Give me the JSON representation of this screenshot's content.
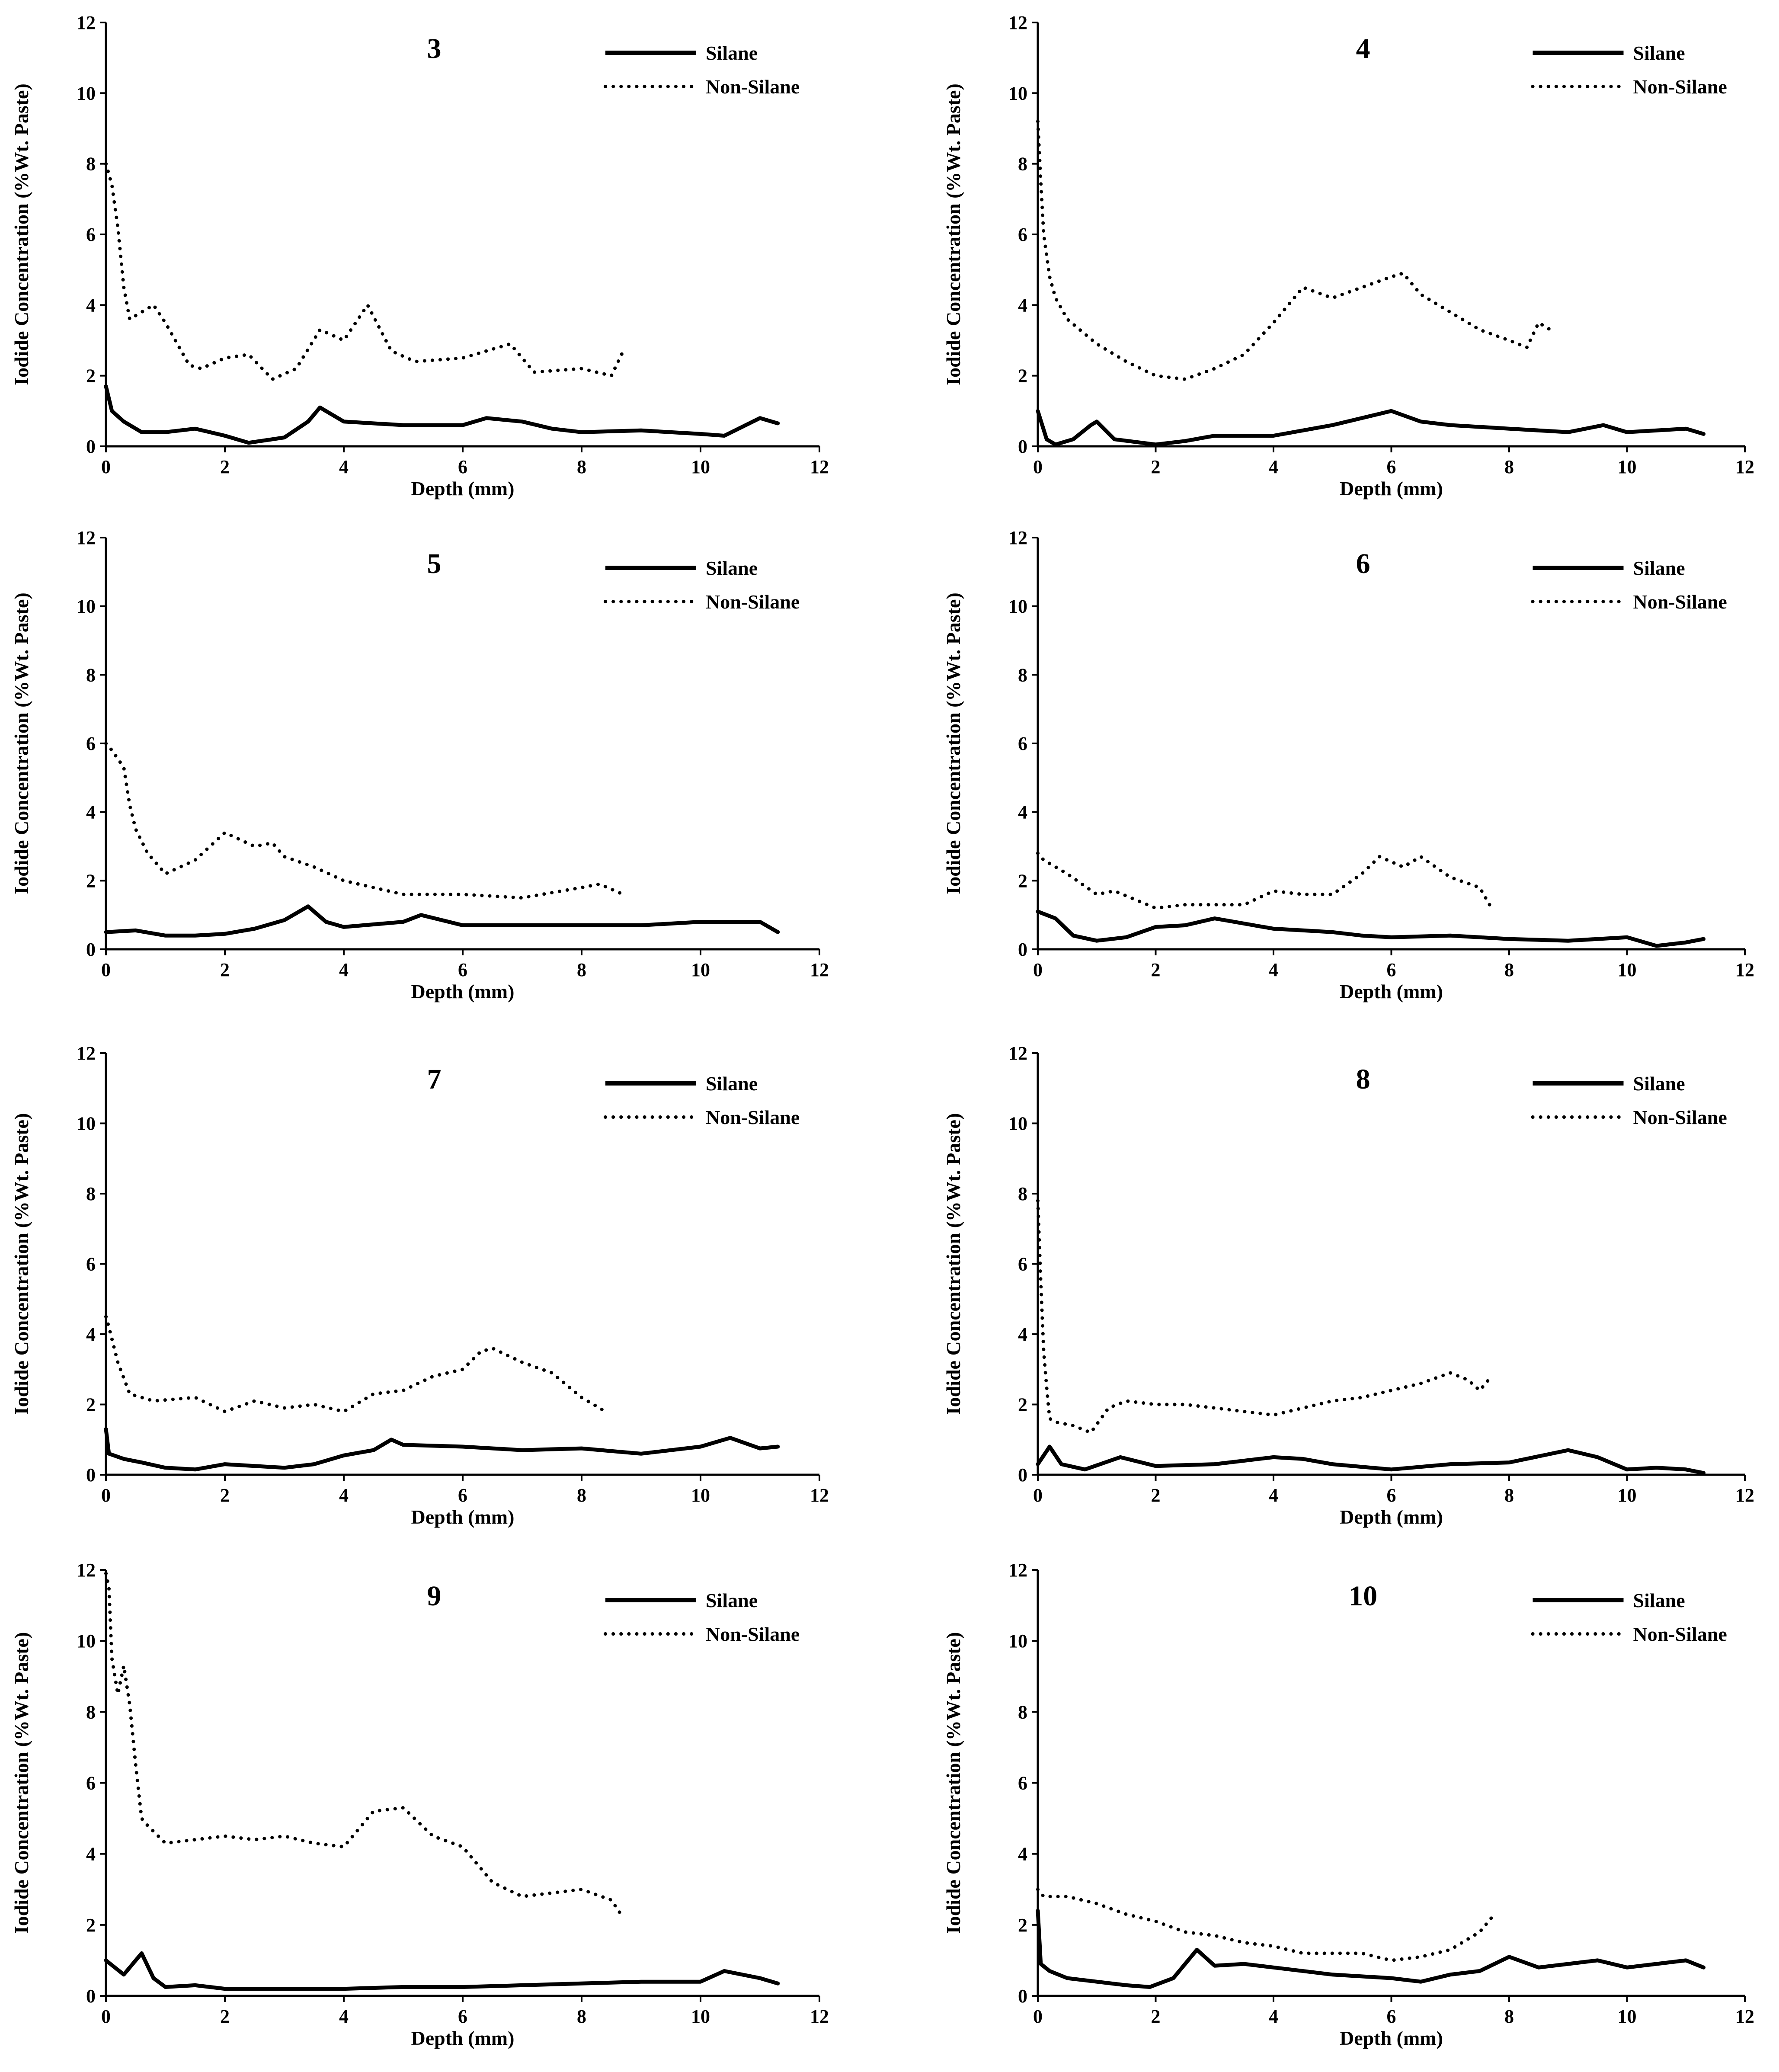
{
  "figure": {
    "series_names": [
      "Silane",
      "Non-Silane"
    ],
    "colors": {
      "axis": "#000000",
      "line": "#000000",
      "background": "#ffffff"
    }
  },
  "chart_data": [
    {
      "type": "line",
      "title": "3",
      "xlabel": "Depth (mm)",
      "ylabel": "Iodide Concentration (%Wt. Paste)",
      "xlim": [
        0,
        12
      ],
      "ylim": [
        0,
        12
      ],
      "xticks": [
        0,
        2,
        4,
        6,
        8,
        10,
        12
      ],
      "yticks": [
        0,
        2,
        4,
        6,
        8,
        10,
        12
      ],
      "legend": "top-right",
      "series": [
        {
          "name": "Silane",
          "style": "solid",
          "x": [
            0,
            0.1,
            0.3,
            0.6,
            1,
            1.5,
            2,
            2.4,
            3,
            3.4,
            3.6,
            4,
            5,
            6,
            6.4,
            7,
            7.5,
            8,
            9,
            10,
            10.4,
            11,
            11.3
          ],
          "y": [
            1.7,
            1.0,
            0.7,
            0.4,
            0.4,
            0.5,
            0.3,
            0.1,
            0.25,
            0.7,
            1.1,
            0.7,
            0.6,
            0.6,
            0.8,
            0.7,
            0.5,
            0.4,
            0.45,
            0.35,
            0.3,
            0.8,
            0.65
          ]
        },
        {
          "name": "Non-Silane",
          "style": "dotted",
          "x": [
            0,
            0.1,
            0.2,
            0.3,
            0.4,
            0.5,
            0.8,
            1,
            1.4,
            1.6,
            2,
            2.4,
            2.8,
            3.2,
            3.6,
            4,
            4.4,
            4.8,
            5.2,
            6,
            6.8,
            7.2,
            8,
            8.5,
            8.7
          ],
          "y": [
            8.0,
            7.4,
            6.2,
            4.5,
            3.6,
            3.7,
            4.0,
            3.5,
            2.3,
            2.2,
            2.5,
            2.6,
            1.9,
            2.2,
            3.3,
            3.0,
            4.0,
            2.7,
            2.4,
            2.5,
            2.9,
            2.1,
            2.2,
            2.0,
            2.7
          ]
        }
      ]
    },
    {
      "type": "line",
      "title": "4",
      "xlabel": "Depth (mm)",
      "ylabel": "Iodide Concentration (%Wt. Paste)",
      "xlim": [
        0,
        12
      ],
      "ylim": [
        0,
        12
      ],
      "xticks": [
        0,
        2,
        4,
        6,
        8,
        10,
        12
      ],
      "yticks": [
        0,
        2,
        4,
        6,
        8,
        10,
        12
      ],
      "legend": "top-right",
      "series": [
        {
          "name": "Silane",
          "style": "solid",
          "x": [
            0,
            0.15,
            0.3,
            0.6,
            0.9,
            1.0,
            1.3,
            2,
            2.5,
            3,
            4,
            5,
            6,
            6.5,
            7,
            8,
            9,
            9.6,
            10,
            11,
            11.3
          ],
          "y": [
            1.0,
            0.2,
            0.05,
            0.2,
            0.6,
            0.7,
            0.2,
            0.05,
            0.15,
            0.3,
            0.3,
            0.6,
            1.0,
            0.7,
            0.6,
            0.5,
            0.4,
            0.6,
            0.4,
            0.5,
            0.35
          ]
        },
        {
          "name": "Non-Silane",
          "style": "dotted",
          "x": [
            0,
            0.05,
            0.1,
            0.2,
            0.3,
            0.5,
            1,
            1.5,
            2,
            2.5,
            3,
            3.5,
            4,
            4.5,
            5,
            5.5,
            6,
            6.2,
            6.5,
            7,
            7.5,
            8,
            8.3,
            8.5,
            8.7
          ],
          "y": [
            9.2,
            7.5,
            6.0,
            4.8,
            4.2,
            3.6,
            2.9,
            2.4,
            2.0,
            1.9,
            2.2,
            2.6,
            3.5,
            4.5,
            4.2,
            4.5,
            4.8,
            4.9,
            4.3,
            3.8,
            3.3,
            3.0,
            2.8,
            3.5,
            3.3
          ]
        }
      ]
    },
    {
      "type": "line",
      "title": "5",
      "xlabel": "Depth (mm)",
      "ylabel": "Iodide Concentration (%Wt. Paste)",
      "xlim": [
        0,
        12
      ],
      "ylim": [
        0,
        12
      ],
      "xticks": [
        0,
        2,
        4,
        6,
        8,
        10,
        12
      ],
      "yticks": [
        0,
        2,
        4,
        6,
        8,
        10,
        12
      ],
      "legend": "top-right",
      "series": [
        {
          "name": "Silane",
          "style": "solid",
          "x": [
            0,
            0.5,
            1,
            1.5,
            2,
            2.5,
            3,
            3.4,
            3.7,
            4,
            5,
            5.3,
            6,
            7,
            8,
            9,
            10,
            11,
            11.3
          ],
          "y": [
            0.5,
            0.55,
            0.4,
            0.4,
            0.45,
            0.6,
            0.85,
            1.25,
            0.8,
            0.65,
            0.8,
            1.0,
            0.7,
            0.7,
            0.7,
            0.7,
            0.8,
            0.8,
            0.5
          ]
        },
        {
          "name": "Non-Silane",
          "style": "dotted",
          "x": [
            0,
            0.1,
            0.3,
            0.4,
            0.5,
            0.7,
            1,
            1.5,
            2,
            2.5,
            2.8,
            3,
            3.5,
            4,
            5,
            6,
            7,
            8,
            8.3,
            8.7
          ],
          "y": [
            6.0,
            5.8,
            5.3,
            4.2,
            3.5,
            2.8,
            2.2,
            2.6,
            3.4,
            3.0,
            3.1,
            2.7,
            2.4,
            2.0,
            1.6,
            1.6,
            1.5,
            1.8,
            1.9,
            1.6
          ]
        }
      ]
    },
    {
      "type": "line",
      "title": "6",
      "xlabel": "Depth (mm)",
      "ylabel": "Iodide Concentration (%Wt. Paste)",
      "xlim": [
        0,
        12
      ],
      "ylim": [
        0,
        12
      ],
      "xticks": [
        0,
        2,
        4,
        6,
        8,
        10,
        12
      ],
      "yticks": [
        0,
        2,
        4,
        6,
        8,
        10,
        12
      ],
      "legend": "top-right",
      "series": [
        {
          "name": "Silane",
          "style": "solid",
          "x": [
            0,
            0.3,
            0.6,
            1,
            1.5,
            2,
            2.5,
            3,
            3.5,
            4,
            5,
            5.5,
            6,
            7,
            8,
            9,
            10,
            10.5,
            11,
            11.3
          ],
          "y": [
            1.1,
            0.9,
            0.4,
            0.25,
            0.35,
            0.65,
            0.7,
            0.9,
            0.75,
            0.6,
            0.5,
            0.4,
            0.35,
            0.4,
            0.3,
            0.25,
            0.35,
            0.1,
            0.2,
            0.3
          ]
        },
        {
          "name": "Non-Silane",
          "style": "dotted",
          "x": [
            0,
            0.1,
            0.5,
            1,
            1.3,
            2,
            2.5,
            3,
            3.5,
            4,
            4.5,
            5,
            5.5,
            5.8,
            6.2,
            6.5,
            7,
            7.5,
            7.7
          ],
          "y": [
            2.8,
            2.6,
            2.2,
            1.6,
            1.7,
            1.2,
            1.3,
            1.3,
            1.3,
            1.7,
            1.6,
            1.6,
            2.2,
            2.7,
            2.4,
            2.7,
            2.1,
            1.8,
            1.2
          ]
        }
      ]
    },
    {
      "type": "line",
      "title": "7",
      "xlabel": "Depth (mm)",
      "ylabel": "Iodide Concentration (%Wt. Paste)",
      "xlim": [
        0,
        12
      ],
      "ylim": [
        0,
        12
      ],
      "xticks": [
        0,
        2,
        4,
        6,
        8,
        10,
        12
      ],
      "yticks": [
        0,
        2,
        4,
        6,
        8,
        10,
        12
      ],
      "legend": "top-right",
      "series": [
        {
          "name": "Silane",
          "style": "solid",
          "x": [
            0,
            0.05,
            0.3,
            0.6,
            1,
            1.5,
            2,
            2.5,
            3,
            3.5,
            4,
            4.5,
            4.8,
            5,
            6,
            7,
            8,
            9,
            10,
            10.5,
            11,
            11.3
          ],
          "y": [
            1.3,
            0.6,
            0.45,
            0.35,
            0.2,
            0.15,
            0.3,
            0.25,
            0.2,
            0.3,
            0.55,
            0.7,
            1.0,
            0.85,
            0.8,
            0.7,
            0.75,
            0.6,
            0.8,
            1.05,
            0.75,
            0.8
          ]
        },
        {
          "name": "Non-Silane",
          "style": "dotted",
          "x": [
            0,
            0.05,
            0.2,
            0.4,
            0.8,
            1.5,
            2,
            2.5,
            3,
            3.5,
            4,
            4.5,
            5,
            5.5,
            6,
            6.3,
            6.5,
            7,
            7.5,
            8,
            8.4
          ],
          "y": [
            4.5,
            4.2,
            3.2,
            2.3,
            2.1,
            2.2,
            1.8,
            2.1,
            1.9,
            2.0,
            1.8,
            2.3,
            2.4,
            2.8,
            3.0,
            3.5,
            3.6,
            3.2,
            2.9,
            2.2,
            1.8
          ]
        }
      ]
    },
    {
      "type": "line",
      "title": "8",
      "xlabel": "Depth (mm)",
      "ylabel": "Iodide Concentration (%Wt. Paste)",
      "xlim": [
        0,
        12
      ],
      "ylim": [
        0,
        12
      ],
      "xticks": [
        0,
        2,
        4,
        6,
        8,
        10,
        12
      ],
      "yticks": [
        0,
        2,
        4,
        6,
        8,
        10,
        12
      ],
      "legend": "top-right",
      "series": [
        {
          "name": "Silane",
          "style": "solid",
          "x": [
            0,
            0.2,
            0.4,
            0.8,
            1.4,
            2,
            3,
            4,
            4.5,
            5,
            6,
            7,
            8,
            9,
            9.5,
            10,
            10.5,
            11,
            11.3
          ],
          "y": [
            0.3,
            0.8,
            0.3,
            0.15,
            0.5,
            0.25,
            0.3,
            0.5,
            0.45,
            0.3,
            0.15,
            0.3,
            0.35,
            0.7,
            0.5,
            0.15,
            0.2,
            0.15,
            0.05
          ]
        },
        {
          "name": "Non-Silane",
          "style": "dotted",
          "x": [
            0,
            0.05,
            0.1,
            0.15,
            0.2,
            0.3,
            0.6,
            0.9,
            1.2,
            1.5,
            2,
            2.5,
            3,
            3.5,
            4,
            4.5,
            5,
            5.5,
            6,
            6.5,
            7,
            7.3,
            7.5,
            7.7
          ],
          "y": [
            7.8,
            5.5,
            3.5,
            2.5,
            1.6,
            1.5,
            1.4,
            1.2,
            1.9,
            2.1,
            2.0,
            2.0,
            1.9,
            1.8,
            1.7,
            1.9,
            2.1,
            2.2,
            2.4,
            2.6,
            2.9,
            2.7,
            2.4,
            2.8
          ]
        }
      ]
    },
    {
      "type": "line",
      "title": "9",
      "xlabel": "Depth (mm)",
      "ylabel": "Iodide Concentration (%Wt. Paste)",
      "xlim": [
        0,
        12
      ],
      "ylim": [
        0,
        12
      ],
      "xticks": [
        0,
        2,
        4,
        6,
        8,
        10,
        12
      ],
      "yticks": [
        0,
        2,
        4,
        6,
        8,
        10,
        12
      ],
      "legend": "top-right",
      "series": [
        {
          "name": "Silane",
          "style": "solid",
          "x": [
            0,
            0.3,
            0.5,
            0.6,
            0.8,
            1,
            1.5,
            2,
            3,
            4,
            5,
            6,
            7,
            8,
            9,
            10,
            10.4,
            11,
            11.3
          ],
          "y": [
            1.0,
            0.6,
            1.0,
            1.2,
            0.5,
            0.25,
            0.3,
            0.2,
            0.2,
            0.2,
            0.25,
            0.25,
            0.3,
            0.35,
            0.4,
            0.4,
            0.7,
            0.5,
            0.35
          ]
        },
        {
          "name": "Non-Silane",
          "style": "dotted",
          "x": [
            0,
            0.05,
            0.1,
            0.2,
            0.3,
            0.4,
            0.5,
            0.6,
            0.7,
            1,
            1.5,
            2,
            2.5,
            3,
            3.5,
            4,
            4.5,
            5,
            5.5,
            6,
            6.5,
            7,
            7.5,
            8,
            8.5,
            8.7
          ],
          "y": [
            11.9,
            11.5,
            9.5,
            8.5,
            9.3,
            8.2,
            6.5,
            5.0,
            4.8,
            4.3,
            4.4,
            4.5,
            4.4,
            4.5,
            4.3,
            4.2,
            5.2,
            5.3,
            4.5,
            4.2,
            3.2,
            2.8,
            2.9,
            3.0,
            2.7,
            2.2
          ]
        }
      ]
    },
    {
      "type": "line",
      "title": "10",
      "xlabel": "Depth (mm)",
      "ylabel": "Iodide Concentration (%Wt. Paste)",
      "xlim": [
        0,
        12
      ],
      "ylim": [
        0,
        12
      ],
      "xticks": [
        0,
        2,
        4,
        6,
        8,
        10,
        12
      ],
      "yticks": [
        0,
        2,
        4,
        6,
        8,
        10,
        12
      ],
      "legend": "top-right",
      "series": [
        {
          "name": "Silane",
          "style": "solid",
          "x": [
            0,
            0.05,
            0.2,
            0.5,
            1,
            1.5,
            1.9,
            2.3,
            2.7,
            3,
            3.5,
            4,
            5,
            6,
            6.5,
            7,
            7.5,
            8,
            8.5,
            9,
            9.5,
            10,
            11,
            11.3
          ],
          "y": [
            2.4,
            0.9,
            0.7,
            0.5,
            0.4,
            0.3,
            0.25,
            0.5,
            1.3,
            0.85,
            0.9,
            0.8,
            0.6,
            0.5,
            0.4,
            0.6,
            0.7,
            1.1,
            0.8,
            0.9,
            1.0,
            0.8,
            1.0,
            0.8
          ]
        },
        {
          "name": "Non-Silane",
          "style": "dotted",
          "x": [
            0,
            0.1,
            0.5,
            1,
            1.5,
            2,
            2.5,
            3,
            3.5,
            4,
            4.5,
            5,
            5.5,
            6,
            6.5,
            7,
            7.5,
            7.7
          ],
          "y": [
            3.0,
            2.8,
            2.8,
            2.6,
            2.3,
            2.1,
            1.8,
            1.7,
            1.5,
            1.4,
            1.2,
            1.2,
            1.2,
            1.0,
            1.1,
            1.3,
            1.8,
            2.2
          ]
        }
      ]
    }
  ]
}
